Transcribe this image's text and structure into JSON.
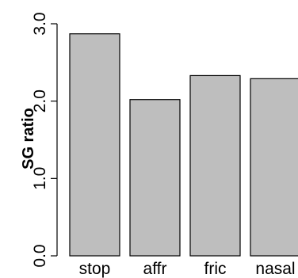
{
  "chart_data": {
    "type": "bar",
    "title": "",
    "xlabel": "",
    "ylabel": "SG ratio",
    "categories": [
      "stop",
      "affr",
      "fric",
      "nasal"
    ],
    "values": [
      2.87,
      2.02,
      2.33,
      2.29
    ],
    "ylim": [
      0,
      3.0
    ],
    "yticks": [
      0.0,
      1.0,
      2.0,
      3.0
    ],
    "ytick_labels": [
      "0.0",
      "1.0",
      "2.0",
      "3.0"
    ],
    "grid": false,
    "legend": "none",
    "colors": {
      "bar_fill": "#bebebe",
      "bar_stroke": "#000000",
      "axis": "#000000"
    }
  }
}
